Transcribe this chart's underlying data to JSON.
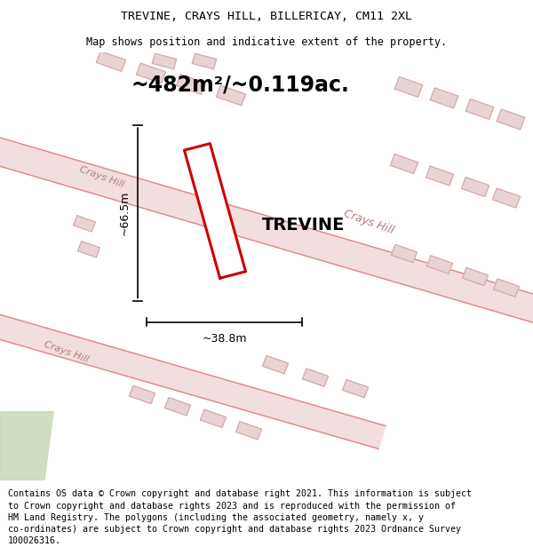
{
  "title_line1": "TREVINE, CRAYS HILL, BILLERICAY, CM11 2XL",
  "title_line2": "Map shows position and indicative extent of the property.",
  "area_text": "~482m²/~0.119ac.",
  "property_name": "TREVINE",
  "dim_width": "~38.8m",
  "dim_height": "~66.5m",
  "footer_text": "Contains OS data © Crown copyright and database right 2021. This information is subject\nto Crown copyright and database rights 2023 and is reproduced with the permission of\nHM Land Registry. The polygons (including the associated geometry, namely x, y\nco-ordinates) are subject to Crown copyright and database rights 2023 Ordnance Survey\n100026316.",
  "map_bg": "#f7f2f2",
  "road_line_color": "#e08888",
  "road_fill_color": "#f2dede",
  "building_line_color": "#d4a8a8",
  "building_fill_color": "#e8d4d4",
  "green_fill": "#c8d8b8",
  "plot_color": "#cc0000",
  "title_fontsize": 9.5,
  "subtitle_fontsize": 8.5,
  "footer_fontsize": 7.2,
  "area_fontsize": 17,
  "prop_fontsize": 14,
  "road_label_color": "#b08080",
  "road_label_fontsize": 9
}
